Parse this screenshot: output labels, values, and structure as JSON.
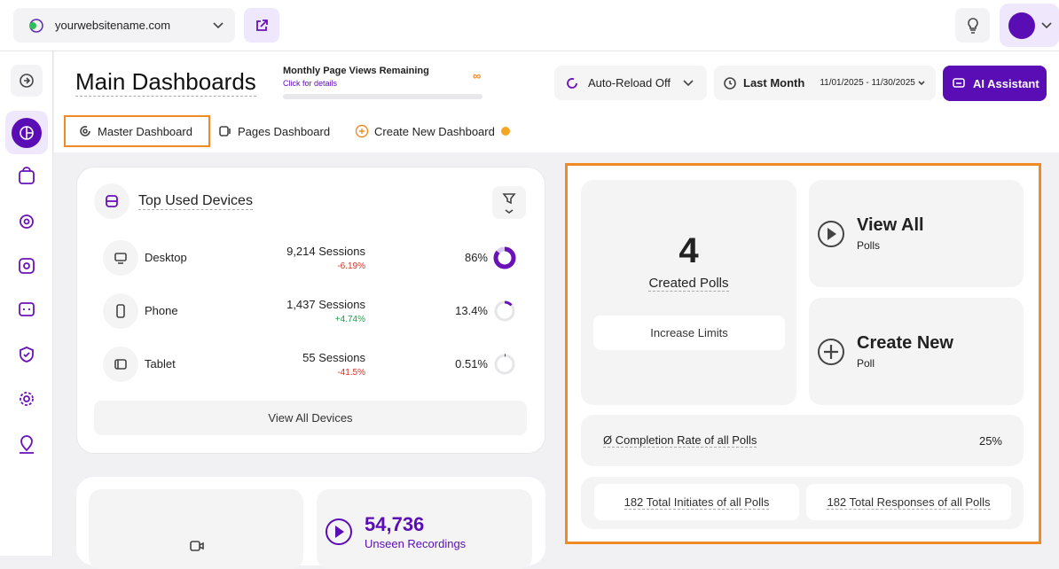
{
  "topbar": {
    "site": "yourwebsitename.com"
  },
  "header": {
    "title": "Main Dashboards",
    "page_views": {
      "label": "Monthly Page Views Remaining",
      "link": "Click for details",
      "value": "∞"
    },
    "auto_reload": "Auto-Reload Off",
    "period": "Last Month",
    "date_range": "11/01/2025 - 11/30/2025",
    "ai_button": "AI Assistant"
  },
  "tabs": [
    "Master Dashboard",
    "Pages Dashboard",
    "Create New Dashboard"
  ],
  "devices": {
    "title": "Top Used Devices",
    "rows": [
      {
        "name": "Desktop",
        "sessions": "9,214 Sessions",
        "change": "-6.19%",
        "share": "86%"
      },
      {
        "name": "Phone",
        "sessions": "1,437 Sessions",
        "change": "+4.74%",
        "share": "13.4%"
      },
      {
        "name": "Tablet",
        "sessions": "55 Sessions",
        "change": "-41.5%",
        "share": "0.51%"
      }
    ],
    "button": "View All Devices"
  },
  "recordings": {
    "count": "54,736",
    "label": "Unseen Recordings"
  },
  "polls": {
    "created_count": "4",
    "created_label": "Created Polls",
    "increase": "Increase Limits",
    "view_all": {
      "title": "View All",
      "subtitle": "Polls"
    },
    "create_new": {
      "title": "Create New",
      "subtitle": "Poll"
    },
    "completion": {
      "label": "Ø Completion Rate of all Polls",
      "value": "25%"
    },
    "initiates": "182 Total Initiates of all Polls",
    "responses": "182 Total Responses of all Polls"
  }
}
